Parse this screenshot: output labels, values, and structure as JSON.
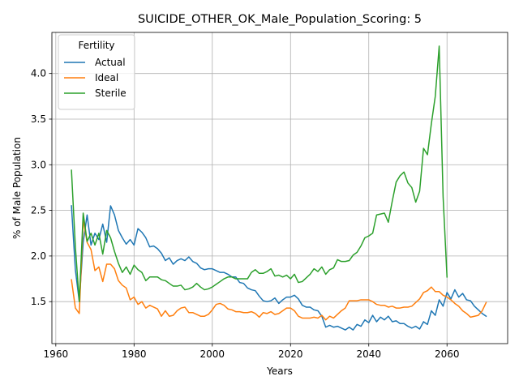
{
  "chart_data": {
    "type": "line",
    "title": "SUICIDE_OTHER_OK_Male_Population_Scoring: 5",
    "xlabel": "Years",
    "ylabel": "% of Male Population",
    "xlim": [
      1959,
      2075.5
    ],
    "ylim": [
      1.04,
      4.45
    ],
    "xticks": [
      1960,
      1980,
      2000,
      2020,
      2040,
      2060
    ],
    "yticks": [
      1.5,
      2.0,
      2.5,
      3.0,
      3.5,
      4.0
    ],
    "grid": true,
    "legend": {
      "title": "Fertility",
      "placement": "top-left"
    },
    "series": [
      {
        "name": "Actual",
        "color": "#1f77b4",
        "points": [
          [
            1964,
            2.55
          ],
          [
            1965,
            1.85
          ],
          [
            1966,
            1.5
          ],
          [
            1967,
            2.15
          ],
          [
            1968,
            2.45
          ],
          [
            1969,
            2.12
          ],
          [
            1970,
            2.25
          ],
          [
            1971,
            2.18
          ],
          [
            1972,
            2.35
          ],
          [
            1973,
            2.15
          ],
          [
            1974,
            2.55
          ],
          [
            1975,
            2.45
          ],
          [
            1976,
            2.28
          ],
          [
            1977,
            2.2
          ],
          [
            1978,
            2.13
          ],
          [
            1979,
            2.18
          ],
          [
            1980,
            2.12
          ],
          [
            1981,
            2.3
          ],
          [
            1982,
            2.26
          ],
          [
            1983,
            2.2
          ],
          [
            1984,
            2.1
          ],
          [
            1985,
            2.11
          ],
          [
            1986,
            2.08
          ],
          [
            1987,
            2.03
          ],
          [
            1988,
            1.95
          ],
          [
            1989,
            1.98
          ],
          [
            1990,
            1.91
          ],
          [
            1991,
            1.95
          ],
          [
            1992,
            1.97
          ],
          [
            1993,
            1.95
          ],
          [
            1994,
            1.99
          ],
          [
            1995,
            1.94
          ],
          [
            1996,
            1.92
          ],
          [
            1997,
            1.87
          ],
          [
            1998,
            1.85
          ],
          [
            1999,
            1.86
          ],
          [
            2000,
            1.86
          ],
          [
            2001,
            1.84
          ],
          [
            2002,
            1.82
          ],
          [
            2003,
            1.82
          ],
          [
            2004,
            1.8
          ],
          [
            2005,
            1.77
          ],
          [
            2006,
            1.77
          ],
          [
            2007,
            1.71
          ],
          [
            2008,
            1.7
          ],
          [
            2009,
            1.65
          ],
          [
            2010,
            1.63
          ],
          [
            2011,
            1.62
          ],
          [
            2012,
            1.56
          ],
          [
            2013,
            1.51
          ],
          [
            2014,
            1.5
          ],
          [
            2015,
            1.51
          ],
          [
            2016,
            1.54
          ],
          [
            2017,
            1.48
          ],
          [
            2018,
            1.52
          ],
          [
            2019,
            1.55
          ],
          [
            2020,
            1.55
          ],
          [
            2021,
            1.57
          ],
          [
            2022,
            1.53
          ],
          [
            2023,
            1.46
          ],
          [
            2024,
            1.44
          ],
          [
            2025,
            1.44
          ],
          [
            2026,
            1.41
          ],
          [
            2027,
            1.4
          ],
          [
            2028,
            1.34
          ],
          [
            2029,
            1.22
          ],
          [
            2030,
            1.24
          ],
          [
            2031,
            1.22
          ],
          [
            2032,
            1.23
          ],
          [
            2033,
            1.21
          ],
          [
            2034,
            1.19
          ],
          [
            2035,
            1.22
          ],
          [
            2036,
            1.19
          ],
          [
            2037,
            1.25
          ],
          [
            2038,
            1.23
          ],
          [
            2039,
            1.3
          ],
          [
            2040,
            1.27
          ],
          [
            2041,
            1.35
          ],
          [
            2042,
            1.28
          ],
          [
            2043,
            1.33
          ],
          [
            2044,
            1.3
          ],
          [
            2045,
            1.34
          ],
          [
            2046,
            1.28
          ],
          [
            2047,
            1.29
          ],
          [
            2048,
            1.26
          ],
          [
            2049,
            1.26
          ],
          [
            2050,
            1.23
          ],
          [
            2051,
            1.21
          ],
          [
            2052,
            1.23
          ],
          [
            2053,
            1.2
          ],
          [
            2054,
            1.28
          ],
          [
            2055,
            1.25
          ],
          [
            2056,
            1.4
          ],
          [
            2057,
            1.35
          ],
          [
            2058,
            1.52
          ],
          [
            2059,
            1.45
          ],
          [
            2060,
            1.6
          ],
          [
            2061,
            1.53
          ],
          [
            2062,
            1.63
          ],
          [
            2063,
            1.55
          ],
          [
            2064,
            1.59
          ],
          [
            2065,
            1.52
          ],
          [
            2066,
            1.51
          ],
          [
            2067,
            1.45
          ],
          [
            2068,
            1.41
          ],
          [
            2069,
            1.37
          ],
          [
            2070,
            1.34
          ]
        ]
      },
      {
        "name": "Ideal",
        "color": "#ff7f0e",
        "points": [
          [
            1964,
            1.74
          ],
          [
            1965,
            1.43
          ],
          [
            1966,
            1.37
          ],
          [
            1967,
            2.4
          ],
          [
            1968,
            2.15
          ],
          [
            1969,
            2.07
          ],
          [
            1970,
            1.84
          ],
          [
            1971,
            1.88
          ],
          [
            1972,
            1.72
          ],
          [
            1973,
            1.91
          ],
          [
            1974,
            1.91
          ],
          [
            1975,
            1.86
          ],
          [
            1976,
            1.73
          ],
          [
            1977,
            1.68
          ],
          [
            1978,
            1.65
          ],
          [
            1979,
            1.52
          ],
          [
            1980,
            1.55
          ],
          [
            1981,
            1.47
          ],
          [
            1982,
            1.5
          ],
          [
            1983,
            1.43
          ],
          [
            1984,
            1.46
          ],
          [
            1985,
            1.44
          ],
          [
            1986,
            1.42
          ],
          [
            1987,
            1.34
          ],
          [
            1988,
            1.4
          ],
          [
            1989,
            1.34
          ],
          [
            1990,
            1.35
          ],
          [
            1991,
            1.4
          ],
          [
            1992,
            1.43
          ],
          [
            1993,
            1.44
          ],
          [
            1994,
            1.38
          ],
          [
            1995,
            1.38
          ],
          [
            1996,
            1.36
          ],
          [
            1997,
            1.34
          ],
          [
            1998,
            1.34
          ],
          [
            1999,
            1.36
          ],
          [
            2000,
            1.41
          ],
          [
            2001,
            1.47
          ],
          [
            2002,
            1.48
          ],
          [
            2003,
            1.46
          ],
          [
            2004,
            1.42
          ],
          [
            2005,
            1.41
          ],
          [
            2006,
            1.39
          ],
          [
            2007,
            1.39
          ],
          [
            2008,
            1.38
          ],
          [
            2009,
            1.38
          ],
          [
            2010,
            1.39
          ],
          [
            2011,
            1.37
          ],
          [
            2012,
            1.33
          ],
          [
            2013,
            1.38
          ],
          [
            2014,
            1.37
          ],
          [
            2015,
            1.39
          ],
          [
            2016,
            1.36
          ],
          [
            2017,
            1.37
          ],
          [
            2018,
            1.4
          ],
          [
            2019,
            1.43
          ],
          [
            2020,
            1.43
          ],
          [
            2021,
            1.4
          ],
          [
            2022,
            1.34
          ],
          [
            2023,
            1.32
          ],
          [
            2024,
            1.32
          ],
          [
            2025,
            1.32
          ],
          [
            2026,
            1.33
          ],
          [
            2027,
            1.32
          ],
          [
            2028,
            1.35
          ],
          [
            2029,
            1.3
          ],
          [
            2030,
            1.34
          ],
          [
            2031,
            1.32
          ],
          [
            2032,
            1.36
          ],
          [
            2033,
            1.4
          ],
          [
            2034,
            1.43
          ],
          [
            2035,
            1.51
          ],
          [
            2036,
            1.51
          ],
          [
            2037,
            1.51
          ],
          [
            2038,
            1.52
          ],
          [
            2039,
            1.52
          ],
          [
            2040,
            1.52
          ],
          [
            2041,
            1.5
          ],
          [
            2042,
            1.47
          ],
          [
            2043,
            1.46
          ],
          [
            2044,
            1.46
          ],
          [
            2045,
            1.44
          ],
          [
            2046,
            1.45
          ],
          [
            2047,
            1.43
          ],
          [
            2048,
            1.43
          ],
          [
            2049,
            1.44
          ],
          [
            2050,
            1.44
          ],
          [
            2051,
            1.45
          ],
          [
            2052,
            1.49
          ],
          [
            2053,
            1.53
          ],
          [
            2054,
            1.6
          ],
          [
            2055,
            1.62
          ],
          [
            2056,
            1.66
          ],
          [
            2057,
            1.61
          ],
          [
            2058,
            1.61
          ],
          [
            2059,
            1.57
          ],
          [
            2060,
            1.55
          ],
          [
            2061,
            1.52
          ],
          [
            2062,
            1.48
          ],
          [
            2063,
            1.45
          ],
          [
            2064,
            1.4
          ],
          [
            2065,
            1.37
          ],
          [
            2066,
            1.33
          ],
          [
            2067,
            1.34
          ],
          [
            2068,
            1.35
          ],
          [
            2069,
            1.4
          ],
          [
            2070,
            1.49
          ]
        ]
      },
      {
        "name": "Sterile",
        "color": "#2ca02c",
        "points": [
          [
            1964,
            2.94
          ],
          [
            1965,
            2.1
          ],
          [
            1966,
            1.5
          ],
          [
            1967,
            2.47
          ],
          [
            1968,
            2.16
          ],
          [
            1969,
            2.25
          ],
          [
            1970,
            2.12
          ],
          [
            1971,
            2.25
          ],
          [
            1972,
            2.02
          ],
          [
            1973,
            2.28
          ],
          [
            1974,
            2.2
          ],
          [
            1975,
            2.05
          ],
          [
            1976,
            1.92
          ],
          [
            1977,
            1.82
          ],
          [
            1978,
            1.88
          ],
          [
            1979,
            1.8
          ],
          [
            1980,
            1.9
          ],
          [
            1981,
            1.85
          ],
          [
            1982,
            1.82
          ],
          [
            1983,
            1.73
          ],
          [
            1984,
            1.77
          ],
          [
            1985,
            1.77
          ],
          [
            1986,
            1.77
          ],
          [
            1987,
            1.74
          ],
          [
            1988,
            1.73
          ],
          [
            1989,
            1.7
          ],
          [
            1990,
            1.67
          ],
          [
            1991,
            1.67
          ],
          [
            1992,
            1.68
          ],
          [
            1993,
            1.63
          ],
          [
            1994,
            1.64
          ],
          [
            1995,
            1.66
          ],
          [
            1996,
            1.7
          ],
          [
            1997,
            1.66
          ],
          [
            1998,
            1.63
          ],
          [
            1999,
            1.64
          ],
          [
            2000,
            1.66
          ],
          [
            2001,
            1.69
          ],
          [
            2002,
            1.72
          ],
          [
            2003,
            1.75
          ],
          [
            2004,
            1.77
          ],
          [
            2005,
            1.77
          ],
          [
            2006,
            1.75
          ],
          [
            2007,
            1.75
          ],
          [
            2008,
            1.75
          ],
          [
            2009,
            1.75
          ],
          [
            2010,
            1.82
          ],
          [
            2011,
            1.85
          ],
          [
            2012,
            1.81
          ],
          [
            2013,
            1.81
          ],
          [
            2014,
            1.83
          ],
          [
            2015,
            1.86
          ],
          [
            2016,
            1.78
          ],
          [
            2017,
            1.79
          ],
          [
            2018,
            1.77
          ],
          [
            2019,
            1.79
          ],
          [
            2020,
            1.75
          ],
          [
            2021,
            1.8
          ],
          [
            2022,
            1.71
          ],
          [
            2023,
            1.72
          ],
          [
            2024,
            1.76
          ],
          [
            2025,
            1.8
          ],
          [
            2026,
            1.86
          ],
          [
            2027,
            1.83
          ],
          [
            2028,
            1.88
          ],
          [
            2029,
            1.8
          ],
          [
            2030,
            1.85
          ],
          [
            2031,
            1.87
          ],
          [
            2032,
            1.96
          ],
          [
            2033,
            1.94
          ],
          [
            2034,
            1.94
          ],
          [
            2035,
            1.95
          ],
          [
            2036,
            2.01
          ],
          [
            2037,
            2.04
          ],
          [
            2038,
            2.11
          ],
          [
            2039,
            2.2
          ],
          [
            2040,
            2.22
          ],
          [
            2041,
            2.25
          ],
          [
            2042,
            2.45
          ],
          [
            2043,
            2.46
          ],
          [
            2044,
            2.47
          ],
          [
            2045,
            2.37
          ],
          [
            2046,
            2.6
          ],
          [
            2047,
            2.81
          ],
          [
            2048,
            2.88
          ],
          [
            2049,
            2.92
          ],
          [
            2050,
            2.8
          ],
          [
            2051,
            2.75
          ],
          [
            2052,
            2.59
          ],
          [
            2053,
            2.71
          ],
          [
            2054,
            3.18
          ],
          [
            2055,
            3.11
          ],
          [
            2056,
            3.45
          ],
          [
            2057,
            3.75
          ],
          [
            2058,
            4.3
          ],
          [
            2059,
            2.65
          ],
          [
            2060,
            1.77
          ]
        ]
      }
    ]
  }
}
